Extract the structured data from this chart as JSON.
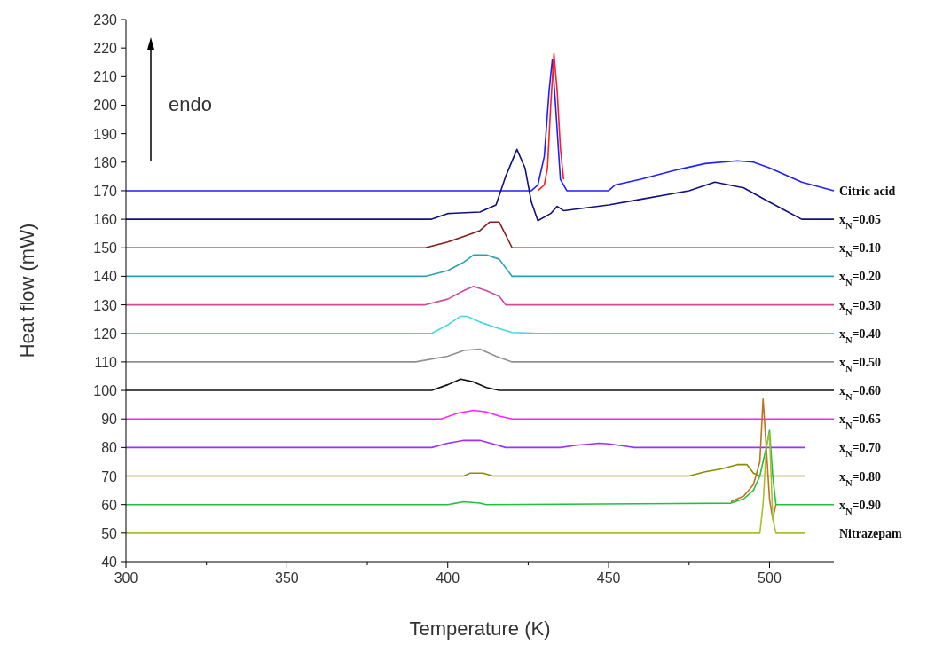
{
  "chart_data": {
    "type": "line",
    "xlabel": "Temperature (K)",
    "ylabel": "Heat flow (mW)",
    "xlim": [
      300,
      520
    ],
    "ylim": [
      40,
      230
    ],
    "xticks": [
      300,
      {
        "value": 325,
        "label": null
      },
      350,
      {
        "value": 375,
        "label": null
      },
      400,
      {
        "value": 425,
        "label": null
      },
      450,
      {
        "value": 475,
        "label": null
      },
      500
    ],
    "yticks": [
      40,
      50,
      60,
      70,
      80,
      90,
      100,
      110,
      120,
      130,
      140,
      150,
      160,
      170,
      180,
      190,
      200,
      210,
      220,
      230
    ],
    "grid": false,
    "marker": "none",
    "line_style": "solid",
    "annotations": [
      "endo"
    ],
    "series": [
      {
        "name": "Citric acid",
        "color": "#1f1fff",
        "x": [
          300,
          426,
          428,
          430,
          431.5,
          432.5,
          433.5,
          435,
          437,
          450,
          452,
          460,
          470,
          480,
          490,
          495,
          500,
          510,
          520
        ],
        "values": [
          170,
          170,
          172,
          182,
          205,
          216,
          200,
          174,
          170,
          170,
          172,
          174,
          177,
          179.5,
          180.5,
          180,
          178,
          173,
          170
        ]
      },
      {
        "color": "#ff1f1f",
        "x": [
          428,
          430,
          431,
          432,
          433,
          434,
          435,
          436
        ],
        "values": [
          170,
          172,
          178,
          200,
          218,
          205,
          185,
          174
        ]
      },
      {
        "name": "x$_{N}$=0.05",
        "color": "#101080",
        "x": [
          300,
          395,
          400,
          410,
          415,
          418,
          421.5,
          424,
          426,
          428,
          432,
          434,
          436,
          450,
          460,
          470,
          475,
          483,
          492,
          500,
          505,
          510,
          520
        ],
        "values": [
          160,
          160,
          162,
          162.5,
          165,
          175,
          184.5,
          178,
          166,
          159.5,
          162,
          164.5,
          163,
          165,
          167,
          169,
          170,
          173,
          171,
          166,
          163,
          160,
          160
        ]
      },
      {
        "name": "x$_{N}$=0.10",
        "color": "#8b1a1a",
        "x": [
          300,
          393,
          400,
          405,
          410,
          413,
          416,
          420,
          520
        ],
        "values": [
          150,
          150,
          152,
          154,
          156,
          159,
          159,
          150,
          150
        ]
      },
      {
        "name": "x$_{N}$=0.20",
        "color": "#2aa0b0",
        "x": [
          300,
          393,
          400,
          405,
          408,
          412,
          416,
          420,
          520
        ],
        "values": [
          140,
          140,
          142,
          145,
          147.5,
          147.5,
          146,
          140,
          140
        ]
      },
      {
        "name": "x$_{N}$=0.30",
        "color": "#d04a9a",
        "x": [
          300,
          393,
          400,
          405,
          408,
          412,
          416,
          418,
          520
        ],
        "values": [
          130,
          130,
          132,
          135,
          136.5,
          135,
          133,
          130,
          130
        ]
      },
      {
        "name": "x$_{N}$=0.40",
        "color": "#40d8e0",
        "x": [
          300,
          395,
          400,
          404,
          406,
          410,
          415,
          420,
          428,
          520
        ],
        "values": [
          120,
          120,
          123,
          126,
          126,
          124,
          122,
          120.3,
          120,
          120
        ]
      },
      {
        "name": "x$_{N}$=0.50",
        "color": "#909090",
        "x": [
          300,
          390,
          400,
          405,
          410,
          415,
          420,
          520
        ],
        "values": [
          110,
          110,
          112,
          114,
          114.5,
          112,
          110,
          110
        ]
      },
      {
        "name": "x$_{N}$=0.60",
        "color": "#111111",
        "x": [
          300,
          395,
          400,
          404,
          408,
          412,
          416,
          520
        ],
        "values": [
          100,
          100,
          102,
          104,
          103,
          101,
          100,
          100
        ]
      },
      {
        "name": "x$_{N}$=0.65",
        "color": "#ff20ff",
        "x": [
          300,
          398,
          403,
          408,
          412,
          416,
          420,
          520
        ],
        "values": [
          90,
          90,
          92,
          93,
          92.5,
          91,
          90,
          90
        ]
      },
      {
        "name": "x$_{N}$=0.70",
        "color": "#9b30ff",
        "x": [
          300,
          395,
          400,
          405,
          410,
          415,
          418,
          435,
          440,
          445,
          447,
          450,
          455,
          458,
          511
        ],
        "values": [
          80,
          80,
          81.5,
          82.5,
          82.5,
          81,
          80,
          80,
          80.8,
          81.3,
          81.5,
          81.3,
          80.5,
          80,
          80
        ]
      },
      {
        "name": "x$_{N}$=0.80",
        "color": "#8b8b00",
        "x": [
          300,
          405,
          407,
          411,
          414,
          475,
          480,
          485,
          490,
          493,
          495,
          497,
          511
        ],
        "values": [
          70,
          70,
          71,
          71,
          70,
          70,
          71.5,
          72.5,
          74,
          74,
          71,
          70,
          70
        ]
      },
      {
        "name": "x$_{N}$=0.90",
        "color": "#20c040",
        "x": [
          300,
          400,
          405,
          410,
          412,
          488,
          492,
          495,
          497,
          499,
          500,
          501,
          502,
          520
        ],
        "values": [
          60,
          60,
          61,
          60.5,
          60,
          60.5,
          62,
          65,
          70,
          80,
          86,
          70,
          60,
          60
        ]
      },
      {
        "color": "#c07020",
        "x": [
          488,
          492,
          495,
          497,
          498,
          499,
          500,
          501,
          502
        ],
        "values": [
          61,
          63,
          67,
          75,
          97,
          80,
          62,
          55,
          60
        ]
      },
      {
        "name": "Nitrazepam",
        "color": "#a8c030",
        "x": [
          300,
          497,
          498,
          499,
          500,
          501,
          502,
          511
        ],
        "values": [
          50,
          50,
          60,
          80,
          85,
          55,
          50,
          50
        ]
      }
    ]
  }
}
